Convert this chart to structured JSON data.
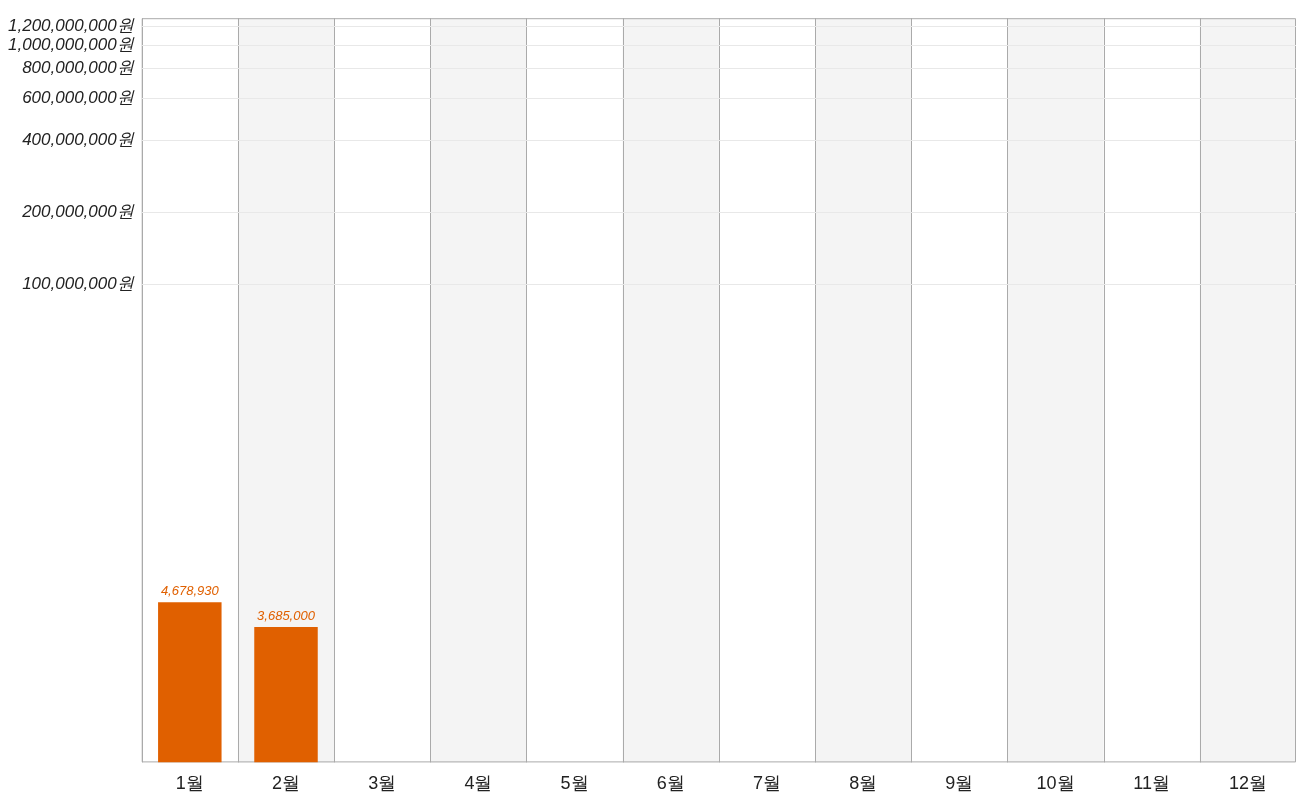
{
  "chart_data": {
    "type": "bar",
    "categories": [
      "1월",
      "2월",
      "3월",
      "4월",
      "5월",
      "6월",
      "7월",
      "8월",
      "9월",
      "10월",
      "11월",
      "12월"
    ],
    "values": [
      4678930,
      3685000,
      null,
      null,
      null,
      null,
      null,
      null,
      null,
      null,
      null,
      null
    ],
    "color": "#e06000",
    "value_labels": [
      "4,678,930",
      "3,685,000",
      null,
      null,
      null,
      null,
      null,
      null,
      null,
      null,
      null,
      null
    ],
    "log": true,
    "ylim": [
      1000000,
      1300000000
    ],
    "yticks": [
      {
        "value": 100000000,
        "label": "100,000,000원"
      },
      {
        "value": 200000000,
        "label": "200,000,000원"
      },
      {
        "value": 400000000,
        "label": "400,000,000원"
      },
      {
        "value": 600000000,
        "label": "600,000,000원"
      },
      {
        "value": 800000000,
        "label": "800,000,000원"
      },
      {
        "value": 1000000000,
        "label": "1,000,000,000원"
      },
      {
        "value": 1200000000,
        "label": "1,200,000,000원"
      }
    ],
    "grid": "y",
    "legend": false
  }
}
